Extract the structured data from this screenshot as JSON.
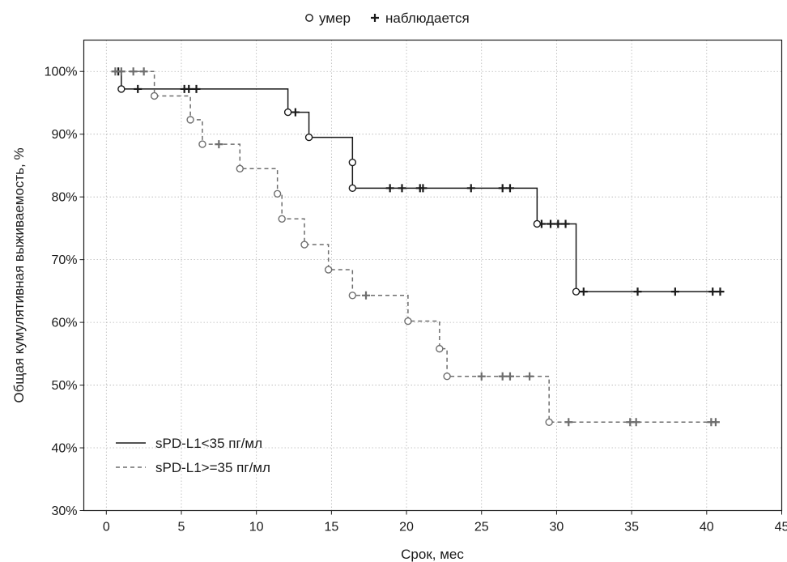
{
  "chart_data": {
    "type": "line",
    "title": "",
    "xlabel": "Срок, мес",
    "ylabel": "Общая кумулятивная выживаемость, %",
    "xlim": [
      -1.5,
      45
    ],
    "ylim": [
      30,
      105
    ],
    "xticks": [
      0,
      5,
      10,
      15,
      20,
      25,
      30,
      35,
      40,
      45
    ],
    "yticks": [
      30,
      40,
      50,
      60,
      70,
      80,
      90,
      100
    ],
    "ytick_labels": [
      "30%",
      "40%",
      "50%",
      "60%",
      "70%",
      "80%",
      "90%",
      "100%"
    ],
    "grid": true,
    "legend_top": [
      {
        "marker": "circle",
        "label": "умер"
      },
      {
        "marker": "plus",
        "label": "наблюдается"
      }
    ],
    "series": [
      {
        "name": "sPD-L1<35 пг/мл",
        "line_style": "solid",
        "color": "#1a1a1a",
        "steps": [
          [
            0.5,
            100
          ],
          [
            1.0,
            97.2
          ],
          [
            12.1,
            93.5
          ],
          [
            13.5,
            89.5
          ],
          [
            16.4,
            85.5
          ],
          [
            16.4,
            81.4
          ],
          [
            28.7,
            75.7
          ],
          [
            31.3,
            64.9
          ],
          [
            40.9,
            64.9
          ]
        ],
        "events": [
          [
            1.0,
            97.2
          ],
          [
            12.1,
            93.5
          ],
          [
            13.5,
            89.5
          ],
          [
            16.4,
            85.5
          ],
          [
            16.4,
            81.4
          ],
          [
            28.7,
            75.7
          ],
          [
            31.3,
            64.9
          ]
        ],
        "censored": [
          [
            0.8,
            100
          ],
          [
            2.1,
            97.2
          ],
          [
            5.2,
            97.2
          ],
          [
            5.5,
            97.2
          ],
          [
            6.0,
            97.2
          ],
          [
            12.6,
            93.5
          ],
          [
            18.9,
            81.4
          ],
          [
            19.7,
            81.4
          ],
          [
            20.9,
            81.4
          ],
          [
            21.1,
            81.4
          ],
          [
            24.3,
            81.4
          ],
          [
            26.4,
            81.4
          ],
          [
            26.9,
            81.4
          ],
          [
            29.0,
            75.7
          ],
          [
            29.6,
            75.7
          ],
          [
            30.1,
            75.7
          ],
          [
            30.6,
            75.7
          ],
          [
            31.8,
            64.9
          ],
          [
            35.4,
            64.9
          ],
          [
            37.9,
            64.9
          ],
          [
            40.4,
            64.9
          ],
          [
            40.9,
            64.9
          ]
        ]
      },
      {
        "name": "sPD-L1>=35 пг/мл",
        "line_style": "dashed",
        "color": "#6e6e6e",
        "steps": [
          [
            0.5,
            100
          ],
          [
            3.2,
            96.1
          ],
          [
            5.6,
            92.3
          ],
          [
            6.4,
            88.4
          ],
          [
            8.9,
            84.5
          ],
          [
            11.4,
            80.5
          ],
          [
            11.7,
            76.5
          ],
          [
            13.2,
            72.4
          ],
          [
            14.8,
            68.4
          ],
          [
            16.4,
            64.3
          ],
          [
            20.1,
            60.2
          ],
          [
            22.2,
            55.8
          ],
          [
            22.7,
            51.4
          ],
          [
            29.5,
            44.1
          ],
          [
            40.6,
            44.1
          ]
        ],
        "events": [
          [
            3.2,
            96.1
          ],
          [
            5.6,
            92.3
          ],
          [
            6.4,
            88.4
          ],
          [
            8.9,
            84.5
          ],
          [
            11.4,
            80.5
          ],
          [
            11.7,
            76.5
          ],
          [
            13.2,
            72.4
          ],
          [
            14.8,
            68.4
          ],
          [
            16.4,
            64.3
          ],
          [
            20.1,
            60.2
          ],
          [
            22.2,
            55.8
          ],
          [
            22.7,
            51.4
          ],
          [
            29.5,
            44.1
          ]
        ],
        "censored": [
          [
            0.6,
            100
          ],
          [
            1.0,
            100
          ],
          [
            1.8,
            100
          ],
          [
            2.5,
            100
          ],
          [
            7.5,
            88.4
          ],
          [
            17.3,
            64.3
          ],
          [
            25.0,
            51.4
          ],
          [
            26.4,
            51.4
          ],
          [
            26.9,
            51.4
          ],
          [
            28.2,
            51.4
          ],
          [
            30.8,
            44.1
          ],
          [
            34.9,
            44.1
          ],
          [
            35.3,
            44.1
          ],
          [
            40.3,
            44.1
          ],
          [
            40.6,
            44.1
          ]
        ]
      }
    ]
  }
}
